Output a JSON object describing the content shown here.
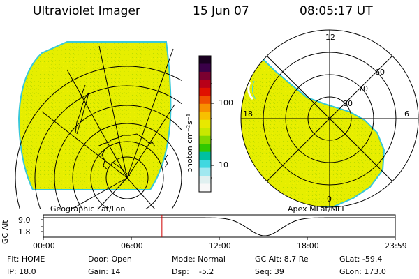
{
  "header": {
    "title": "Ultraviolet Imager",
    "date": "15 Jun 07",
    "time": "08:05:17 UT"
  },
  "colorbar": {
    "unit_label": "photon cm⁻²s⁻¹",
    "tick_100": "100",
    "tick_10": "10",
    "colors": [
      "#1a0020",
      "#3a0048",
      "#7a0030",
      "#b80018",
      "#e01000",
      "#f05000",
      "#f89000",
      "#f8c000",
      "#e8e800",
      "#c8e800",
      "#80d800",
      "#30c800",
      "#00c0a0",
      "#40d8e0",
      "#a0e8f0",
      "#e0f0f0",
      "#f8f8f8"
    ]
  },
  "left_panel": {
    "caption": "Geographic Lat/Lon",
    "fill_color": "#e8f000"
  },
  "right_panel": {
    "caption": "Apex MLat/MLT",
    "label_12": "12",
    "label_18": "18",
    "label_6": "6",
    "label_0": "0",
    "label_60": "60",
    "label_70": "70",
    "label_80": "80",
    "fill_color": "#e8f000"
  },
  "altitude_plot": {
    "axis_title": "GC Alt",
    "tick_top": "9.0",
    "tick_bottom": "1.8",
    "x_ticks": [
      "00:00",
      "06:00",
      "12:00",
      "18:00",
      "23:59"
    ],
    "current_time_hours": 8.088,
    "marker_color": "#d00000"
  },
  "status": {
    "flt": "Flt: HOME",
    "ip": "IP: 18.0",
    "door": "Door: Open",
    "gain": "Gain: 14",
    "mode": "Mode: Normal",
    "dsp": "Dsp:    -5.2",
    "gc_alt": "GC Alt: 8.7 Re",
    "seq": "Seq: 39",
    "glat": "GLat: -59.4",
    "glon": "GLon: 173.0"
  }
}
